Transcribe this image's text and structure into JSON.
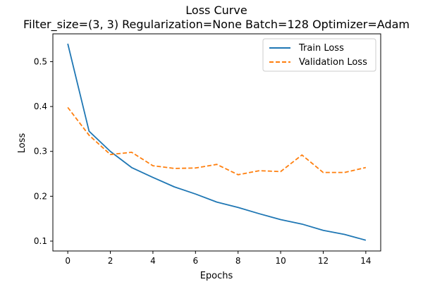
{
  "chart_data": {
    "type": "line",
    "title": "Loss Curve",
    "subtitle": "Filter_size=(3, 3) Regularization=None Batch=128 Optimizer=Adam",
    "xlabel": "Epochs",
    "ylabel": "Loss",
    "xlim": [
      -0.7,
      14.7
    ],
    "ylim": [
      0.078,
      0.562
    ],
    "xticks": [
      0,
      2,
      4,
      6,
      8,
      10,
      12,
      14
    ],
    "yticks": [
      0.1,
      0.2,
      0.3,
      0.4,
      0.5
    ],
    "grid": false,
    "legend_position": "top-right",
    "x": [
      0,
      1,
      2,
      3,
      4,
      5,
      6,
      7,
      8,
      9,
      10,
      11,
      12,
      13,
      14
    ],
    "series": [
      {
        "name": "Train Loss",
        "color": "#1f77b4",
        "style": "solid",
        "values": [
          0.54,
          0.345,
          0.3,
          0.264,
          0.242,
          0.221,
          0.205,
          0.187,
          0.175,
          0.161,
          0.148,
          0.138,
          0.124,
          0.115,
          0.102
        ]
      },
      {
        "name": "Validation Loss",
        "color": "#ff7f0e",
        "style": "dashed",
        "values": [
          0.398,
          0.336,
          0.293,
          0.298,
          0.268,
          0.262,
          0.263,
          0.271,
          0.248,
          0.257,
          0.255,
          0.292,
          0.253,
          0.253,
          0.264
        ]
      }
    ]
  }
}
